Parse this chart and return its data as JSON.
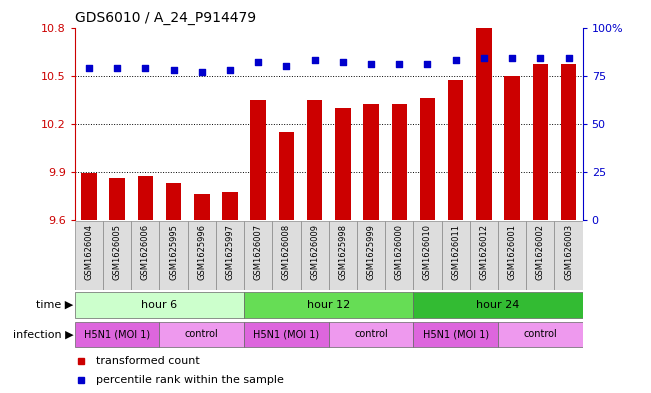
{
  "title": "GDS6010 / A_24_P914479",
  "samples": [
    "GSM1626004",
    "GSM1626005",
    "GSM1626006",
    "GSM1625995",
    "GSM1625996",
    "GSM1625997",
    "GSM1626007",
    "GSM1626008",
    "GSM1626009",
    "GSM1625998",
    "GSM1625999",
    "GSM1626000",
    "GSM1626010",
    "GSM1626011",
    "GSM1626012",
    "GSM1626001",
    "GSM1626002",
    "GSM1626003"
  ],
  "bar_values": [
    9.89,
    9.86,
    9.87,
    9.83,
    9.76,
    9.77,
    10.35,
    10.15,
    10.35,
    10.3,
    10.32,
    10.32,
    10.36,
    10.47,
    10.8,
    10.5,
    10.57,
    10.57
  ],
  "dot_values": [
    79,
    79,
    79,
    78,
    77,
    78,
    82,
    80,
    83,
    82,
    81,
    81,
    81,
    83,
    84,
    84,
    84,
    84
  ],
  "ylim": [
    9.6,
    10.8
  ],
  "y2lim": [
    0,
    100
  ],
  "yticks": [
    9.6,
    9.9,
    10.2,
    10.5,
    10.8
  ],
  "y2ticks": [
    0,
    25,
    50,
    75,
    100
  ],
  "bar_color": "#cc0000",
  "dot_color": "#0000cc",
  "time_groups": [
    {
      "label": "hour 6",
      "start": 0,
      "end": 6,
      "color": "#ccffcc"
    },
    {
      "label": "hour 12",
      "start": 6,
      "end": 12,
      "color": "#66dd55"
    },
    {
      "label": "hour 24",
      "start": 12,
      "end": 18,
      "color": "#33bb33"
    }
  ],
  "inf_groups": [
    {
      "label": "H5N1 (MOI 1)",
      "start": 0,
      "end": 3,
      "color": "#dd66dd"
    },
    {
      "label": "control",
      "start": 3,
      "end": 6,
      "color": "#ee99ee"
    },
    {
      "label": "H5N1 (MOI 1)",
      "start": 6,
      "end": 9,
      "color": "#dd66dd"
    },
    {
      "label": "control",
      "start": 9,
      "end": 12,
      "color": "#ee99ee"
    },
    {
      "label": "H5N1 (MOI 1)",
      "start": 12,
      "end": 15,
      "color": "#dd66dd"
    },
    {
      "label": "control",
      "start": 15,
      "end": 18,
      "color": "#ee99ee"
    }
  ],
  "legend_transformed": "transformed count",
  "legend_percentile": "percentile rank within the sample",
  "time_label": "time",
  "infection_label": "infection",
  "sample_box_color": "#dddddd",
  "sample_box_edge": "#888888"
}
